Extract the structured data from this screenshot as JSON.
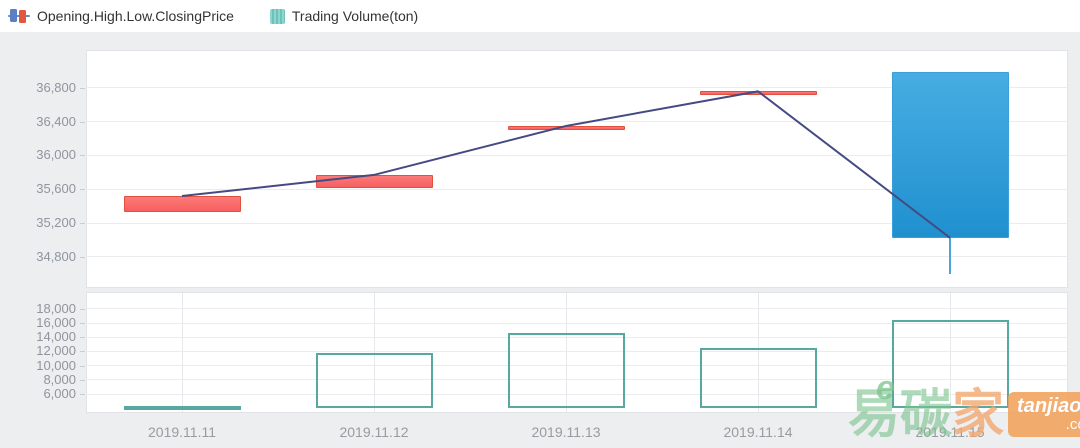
{
  "legend": {
    "items": [
      {
        "label": "Opening.High.Low.ClosingPrice",
        "icon": "candlestick-legend-icon"
      },
      {
        "label": "Trading Volume(ton)",
        "icon": "volume-legend-icon"
      }
    ]
  },
  "watermark": {
    "char_e": "e",
    "char1": "易",
    "char2": "碳",
    "char3": "家",
    "brand": "tanjiaoyi",
    "domain": ".com"
  },
  "colors": {
    "up_fill": "#f96b6b",
    "up_border": "#e0503e",
    "down_fill": "#2f9ed9",
    "down_border": "#3a9fd8",
    "close_line": "#454b82",
    "volume_border": "#58a8a1",
    "axis_label": "#8f959e",
    "grid_line": "#eaecef",
    "panel_background": "#edeef0",
    "plot_background": "#ffffff",
    "legend_text": "#333333"
  },
  "chart_data": [
    {
      "type": "candlestick",
      "title": "",
      "categories": [
        "2019.11.11",
        "2019.11.12",
        "2019.11.13",
        "2019.11.14",
        "2019.11.15"
      ],
      "series": [
        {
          "name": "Opening.High.Low.ClosingPrice",
          "type": "candlestick",
          "value_format": "[open, close, low, high]",
          "values": [
            [
              35330,
              35520,
              35330,
              35520
            ],
            [
              35620,
              35770,
              35620,
              35770
            ],
            [
              36330,
              36350,
              36330,
              36350
            ],
            [
              36740,
              36760,
              36740,
              36760
            ],
            [
              36990,
              35025,
              34590,
              36990
            ]
          ]
        },
        {
          "name": "closing-price-trend-line",
          "type": "line",
          "values": [
            35520,
            35770,
            36350,
            36760,
            35025
          ]
        }
      ],
      "ylim": [
        34430,
        37250
      ],
      "ytick_values": [
        36800,
        36400,
        36000,
        35600,
        35200,
        34800
      ],
      "ytick_labels": [
        "36,800",
        "36,400",
        "36,000",
        "35,600",
        "35,200",
        "34,800"
      ],
      "xlabel": "",
      "ylabel": "",
      "grid": "horizontal",
      "legend_position": "top-left"
    },
    {
      "type": "bar",
      "title": "",
      "categories": [
        "2019.11.11",
        "2019.11.12",
        "2019.11.13",
        "2019.11.14",
        "2019.11.15"
      ],
      "series": [
        {
          "name": "Trading Volume(ton)",
          "type": "bar",
          "style": "outlined",
          "values": [
            4300,
            11800,
            14600,
            12500,
            16500
          ]
        }
      ],
      "bar_base": 4000,
      "ylim": [
        3320,
        20390
      ],
      "ytick_values": [
        18000,
        16000,
        14000,
        12000,
        10000,
        8000,
        6000
      ],
      "ytick_labels": [
        "18,000",
        "16,000",
        "14,000",
        "12,000",
        "10,000",
        "8,000",
        "6,000"
      ],
      "xlabel": "",
      "ylabel": "",
      "grid": "horizontal+vertical"
    }
  ]
}
